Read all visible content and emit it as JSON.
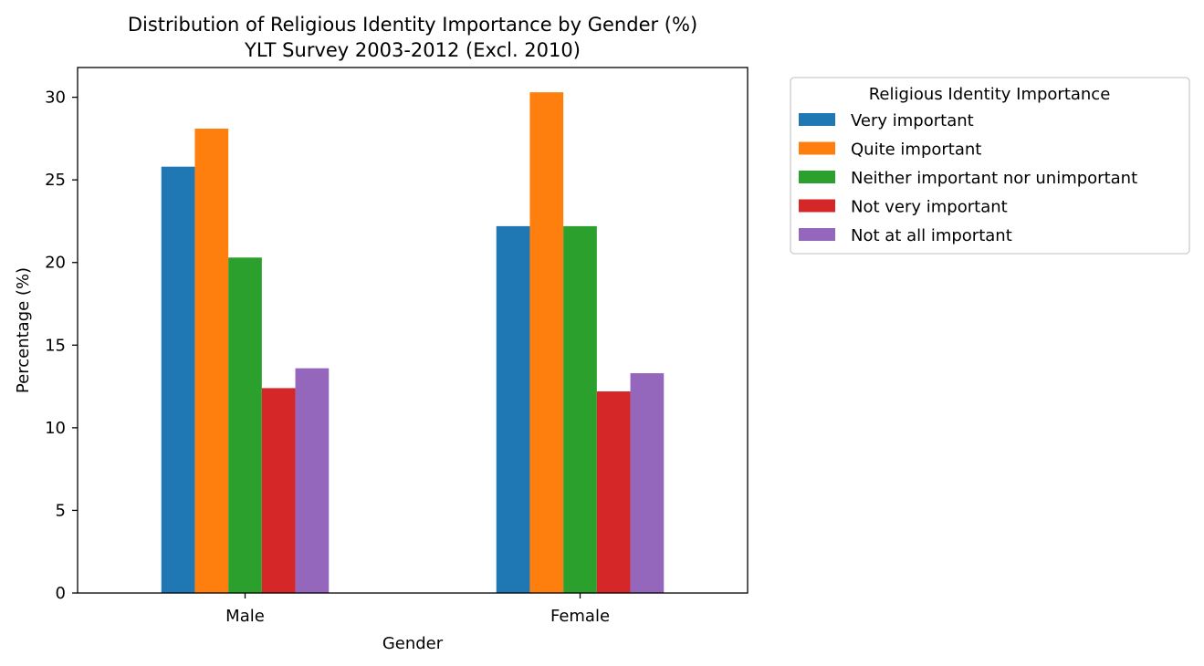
{
  "chart_data": {
    "type": "bar",
    "title": "Distribution of Religious Identity Importance by Gender (%)",
    "subtitle": "YLT Survey 2003-2012 (Excl. 2010)",
    "xlabel": "Gender",
    "ylabel": "Percentage (%)",
    "categories": [
      "Male",
      "Female"
    ],
    "ylim": [
      0,
      31.8
    ],
    "yticks": [
      "0",
      "5",
      "10",
      "15",
      "20",
      "25",
      "30"
    ],
    "legend_title": "Religious Identity Importance",
    "legend_position": "outside-top-right",
    "grid": false,
    "series": [
      {
        "name": "Very important",
        "color": "#1f77b4",
        "values": [
          25.8,
          22.2
        ]
      },
      {
        "name": "Quite important",
        "color": "#ff7f0e",
        "values": [
          28.1,
          30.3
        ]
      },
      {
        "name": "Neither important nor unimportant",
        "color": "#2ca02c",
        "values": [
          20.3,
          22.2
        ]
      },
      {
        "name": "Not very important",
        "color": "#d62728",
        "values": [
          12.4,
          12.2
        ]
      },
      {
        "name": "Not at all important",
        "color": "#9467bd",
        "values": [
          13.6,
          13.3
        ]
      }
    ]
  }
}
